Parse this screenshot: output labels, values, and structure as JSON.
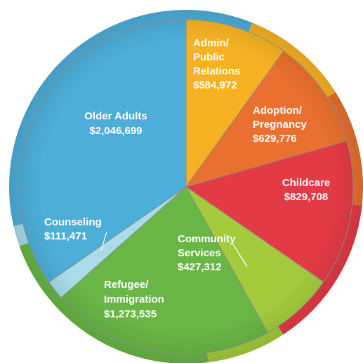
{
  "chart_data": {
    "type": "pie",
    "slices": [
      {
        "lines": [
          "Admin/",
          "Public",
          "Relations"
        ],
        "value_label": "$584,972",
        "value": 584972,
        "color": "#f6b223"
      },
      {
        "lines": [
          "Adoption/",
          "Pregnancy"
        ],
        "value_label": "$629,776",
        "value": 629776,
        "color": "#e9702f"
      },
      {
        "lines": [
          "Childcare"
        ],
        "value_label": "$829,708",
        "value": 829708,
        "color": "#e33b45"
      },
      {
        "lines": [
          "Community",
          "Services"
        ],
        "value_label": "$427,312",
        "value": 427312,
        "color": "#a3cb3c"
      },
      {
        "lines": [
          "Refugee/",
          "Immigration"
        ],
        "value_label": "$1,273,535",
        "value": 1273535,
        "color": "#69b545"
      },
      {
        "lines": [
          "Counseling"
        ],
        "value_label": "$111,471",
        "value": 111471,
        "color": "#a9dbe9"
      },
      {
        "lines": [
          "Older Adults"
        ],
        "value_label": "$2,046,699",
        "value": 2046699,
        "color": "#4daed9"
      }
    ]
  }
}
